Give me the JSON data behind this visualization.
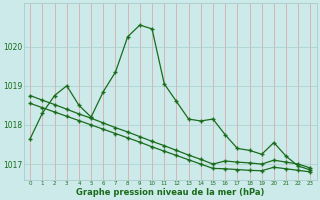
{
  "title": "Graphe pression niveau de la mer (hPa)",
  "bg_color": "#cceaea",
  "grid_color": "#aacccc",
  "line_color": "#1a6b1a",
  "xlim": [
    -0.5,
    23.5
  ],
  "ylim": [
    1016.6,
    1021.1
  ],
  "yticks": [
    1017,
    1018,
    1019,
    1020
  ],
  "xticks": [
    0,
    1,
    2,
    3,
    4,
    5,
    6,
    7,
    8,
    9,
    10,
    11,
    12,
    13,
    14,
    15,
    16,
    17,
    18,
    19,
    20,
    21,
    22,
    23
  ],
  "series1_x": [
    0,
    1,
    2,
    3,
    4,
    5,
    6,
    7,
    8,
    9,
    10,
    11,
    12,
    13,
    14,
    15,
    16,
    17,
    18,
    19,
    20,
    21,
    22,
    23
  ],
  "series1_y": [
    1017.65,
    1018.3,
    1018.75,
    1019.0,
    1018.5,
    1018.2,
    1018.85,
    1019.35,
    1020.25,
    1020.55,
    1020.45,
    1019.05,
    1018.6,
    1018.15,
    1018.1,
    1018.15,
    1017.75,
    1017.4,
    1017.35,
    1017.25,
    1017.55,
    1017.2,
    1016.95,
    1016.85
  ],
  "series2_x": [
    0,
    1,
    2,
    3,
    4,
    5,
    6,
    7,
    8,
    9,
    10,
    11,
    12,
    13,
    14,
    15,
    16,
    17,
    18,
    19,
    20,
    21,
    22,
    23
  ],
  "series2_y": [
    1018.75,
    1018.63,
    1018.52,
    1018.4,
    1018.28,
    1018.17,
    1018.05,
    1017.93,
    1017.82,
    1017.7,
    1017.58,
    1017.47,
    1017.35,
    1017.23,
    1017.12,
    1017.0,
    1017.08,
    1017.05,
    1017.03,
    1017.0,
    1017.1,
    1017.05,
    1017.0,
    1016.9
  ],
  "series3_x": [
    0,
    1,
    2,
    3,
    4,
    5,
    6,
    7,
    8,
    9,
    10,
    11,
    12,
    13,
    14,
    15,
    16,
    17,
    18,
    19,
    20,
    21,
    22,
    23
  ],
  "series3_y": [
    1018.55,
    1018.44,
    1018.33,
    1018.22,
    1018.11,
    1018.0,
    1017.89,
    1017.78,
    1017.67,
    1017.56,
    1017.44,
    1017.33,
    1017.22,
    1017.11,
    1017.0,
    1016.89,
    1016.88,
    1016.86,
    1016.84,
    1016.83,
    1016.92,
    1016.88,
    1016.84,
    1016.8
  ]
}
